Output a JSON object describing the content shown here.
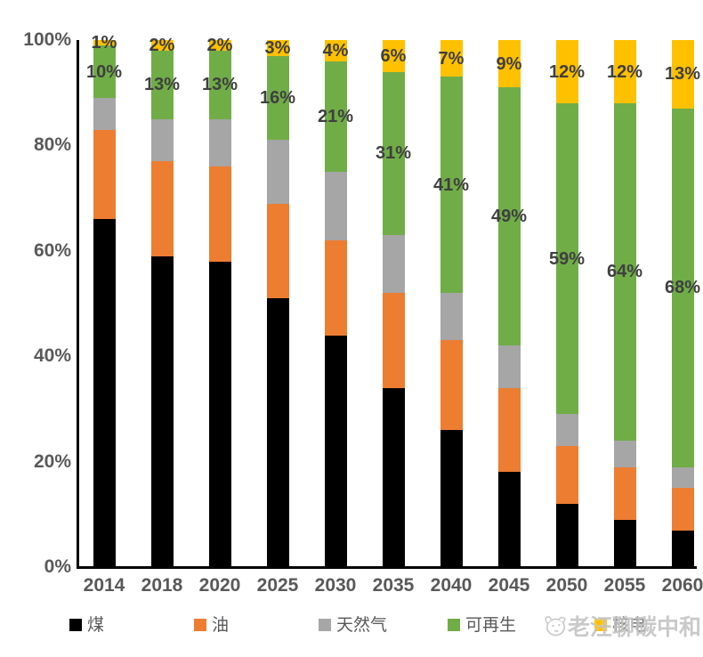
{
  "chart_data": {
    "type": "bar",
    "stacked": true,
    "percent_stacked": true,
    "title": "",
    "xlabel": "",
    "ylabel": "",
    "ylim": [
      0,
      100
    ],
    "grid": false,
    "legend_position": "bottom",
    "categories": [
      "2014",
      "2018",
      "2020",
      "2025",
      "2030",
      "2035",
      "2040",
      "2045",
      "2050",
      "2055",
      "2060"
    ],
    "series": [
      {
        "key": "coal",
        "name": "煤",
        "color": "#000000",
        "values": [
          66,
          59,
          58,
          51,
          44,
          34,
          26,
          18,
          12,
          9,
          7
        ]
      },
      {
        "key": "oil",
        "name": "油",
        "color": "#ED7D31",
        "values": [
          17,
          18,
          18,
          18,
          18,
          18,
          17,
          16,
          11,
          10,
          8
        ]
      },
      {
        "key": "natural-gas",
        "name": "天然气",
        "color": "#A6A6A6",
        "values": [
          6,
          8,
          9,
          12,
          13,
          11,
          9,
          8,
          6,
          5,
          4
        ]
      },
      {
        "key": "renewable",
        "name": "可再生",
        "color": "#70AD47",
        "values": [
          10,
          13,
          13,
          16,
          21,
          31,
          41,
          49,
          59,
          64,
          68
        ]
      },
      {
        "key": "nuclear",
        "name": "核电",
        "color": "#FFC000",
        "values": [
          1,
          2,
          2,
          3,
          4,
          6,
          7,
          9,
          12,
          12,
          13
        ]
      }
    ],
    "data_labels_shown_for": [
      "renewable",
      "nuclear"
    ],
    "renewable_labels": [
      "10%",
      "13%",
      "13%",
      "16%",
      "21%",
      "31%",
      "41%",
      "49%",
      "59%",
      "64%",
      "68%"
    ],
    "nuclear_labels": [
      "1%",
      "2%",
      "2%",
      "3%",
      "4%",
      "6%",
      "7%",
      "9%",
      "12%",
      "12%",
      "13%"
    ],
    "y_ticks": [
      "0%",
      "20%",
      "40%",
      "60%",
      "80%",
      "100%"
    ]
  },
  "legend": {
    "items": [
      {
        "label": "煤",
        "color": "#000000"
      },
      {
        "label": "油",
        "color": "#ED7D31"
      },
      {
        "label": "天然气",
        "color": "#A6A6A6"
      },
      {
        "label": "可再生",
        "color": "#70AD47"
      },
      {
        "label": "核电",
        "color": "#FFC000"
      }
    ]
  },
  "watermark": {
    "text": "老汪聊碳中和"
  },
  "colors": {
    "axis": "#000000",
    "tick_text": "#595959",
    "data_label_text": "#3f3f3f",
    "watermark_text": "#c2c2c2"
  }
}
